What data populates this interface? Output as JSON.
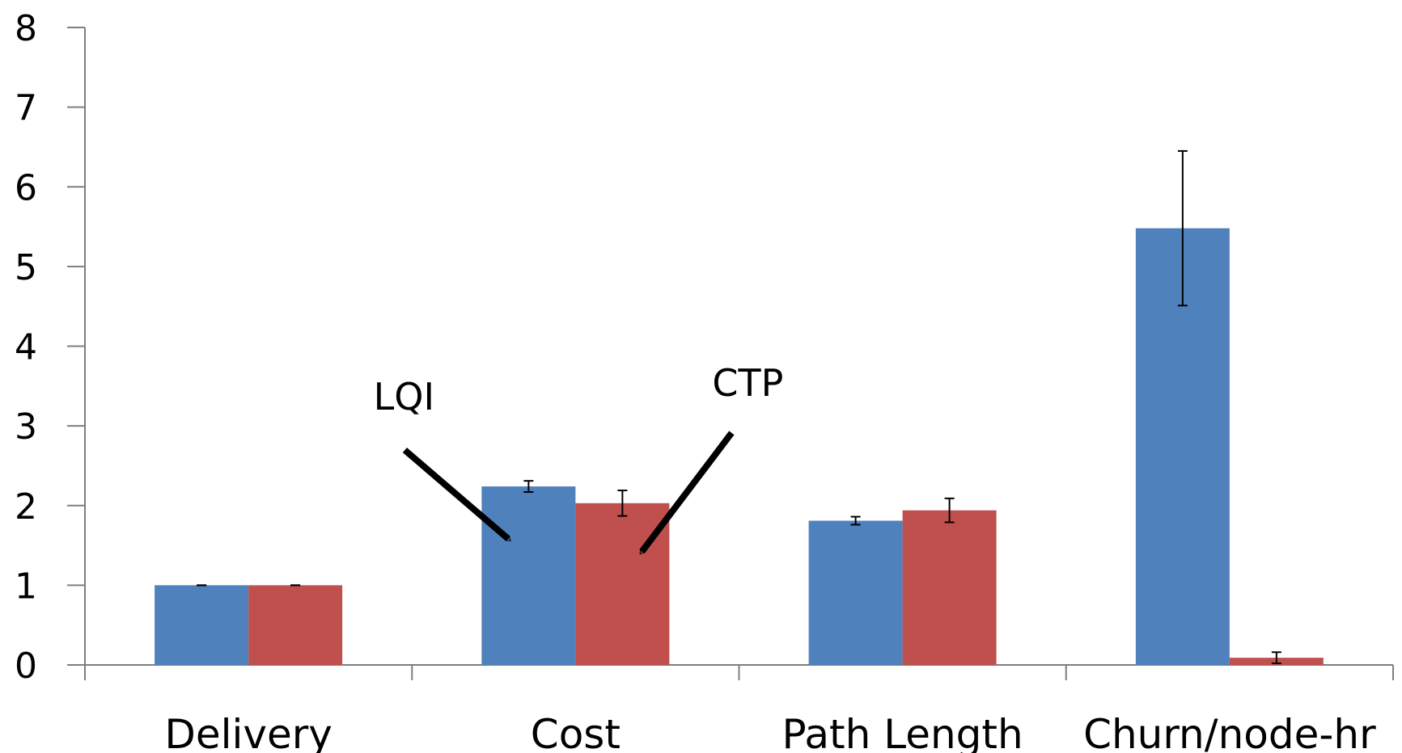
{
  "chart_data": {
    "type": "bar",
    "title": "",
    "xlabel": "",
    "ylabel": "",
    "categories": [
      "Delivery",
      "Cost",
      "Path Length",
      "Churn/node-hr"
    ],
    "series": [
      {
        "color": "#4f81bd",
        "values": [
          1.0,
          2.24,
          1.81,
          5.48
        ],
        "error": [
          0.0,
          0.07,
          0.05,
          0.97
        ]
      },
      {
        "color": "#c0504d",
        "values": [
          1.0,
          2.03,
          1.94,
          0.09
        ],
        "error": [
          0.0,
          0.16,
          0.15,
          0.07
        ]
      }
    ],
    "ylim": [
      0,
      8
    ],
    "yticks": [
      "0",
      "1",
      "2",
      "3",
      "4",
      "5",
      "6",
      "7",
      "8"
    ],
    "grid": false,
    "legend": "none",
    "annotations": [
      {
        "text": "LQI",
        "target_category": "Cost",
        "target_series": 0
      },
      {
        "text": "CTP",
        "target_category": "Cost",
        "target_series": 1
      }
    ]
  }
}
